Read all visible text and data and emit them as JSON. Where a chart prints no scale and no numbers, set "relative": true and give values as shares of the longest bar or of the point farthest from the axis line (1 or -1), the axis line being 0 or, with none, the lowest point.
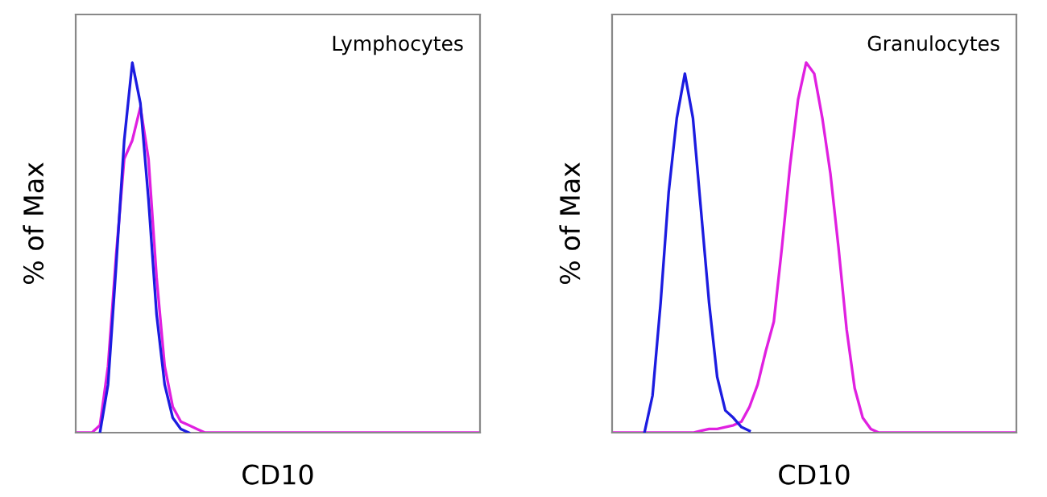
{
  "chart_data": [
    {
      "type": "line",
      "relative": true,
      "ylabel": "% of Max",
      "xlabel": "CD10",
      "annotations": [
        "Lymphocytes"
      ],
      "categories": [
        null,
        null,
        null,
        null,
        null,
        null,
        null,
        null,
        null,
        null,
        null,
        null,
        null,
        null,
        null,
        null,
        null,
        null,
        null,
        null,
        null,
        null,
        null,
        null,
        null,
        null,
        null,
        null,
        null,
        null,
        null,
        null,
        null,
        null,
        null,
        null,
        null,
        null,
        null,
        null,
        null,
        null,
        null,
        null,
        null,
        null,
        null,
        null,
        null,
        null,
        null
      ],
      "series": [
        {
          "color": "#1c1ce0",
          "values": [
            null,
            null,
            null,
            0,
            0.13,
            0.45,
            0.79,
            1,
            0.89,
            0.63,
            0.32,
            0.13,
            0.04,
            0.01,
            0,
            null,
            null,
            null,
            null,
            null,
            null,
            null,
            null,
            null,
            null,
            null,
            null,
            null,
            null,
            null,
            null,
            null,
            null,
            null,
            null,
            null,
            null,
            null,
            null,
            null,
            null,
            null,
            null,
            null,
            null,
            null,
            null,
            null,
            null,
            null,
            null
          ]
        },
        {
          "color": "#e020e0",
          "values": [
            0,
            0,
            0,
            0.02,
            0.18,
            0.48,
            0.74,
            0.79,
            0.88,
            0.74,
            0.42,
            0.18,
            0.07,
            0.03,
            0.02,
            0.01,
            0,
            0,
            0,
            0,
            0,
            0,
            0,
            0,
            0,
            0,
            0,
            0,
            0,
            0,
            0,
            0,
            0,
            0,
            0,
            0,
            0,
            0,
            0,
            0,
            0,
            0,
            0,
            0,
            0,
            0,
            0,
            0,
            0,
            0,
            0
          ]
        }
      ]
    },
    {
      "type": "line",
      "relative": true,
      "ylabel": "% of Max",
      "xlabel": "CD10",
      "annotations": [
        "Granulocytes"
      ],
      "categories": [
        null,
        null,
        null,
        null,
        null,
        null,
        null,
        null,
        null,
        null,
        null,
        null,
        null,
        null,
        null,
        null,
        null,
        null,
        null,
        null,
        null,
        null,
        null,
        null,
        null,
        null,
        null,
        null,
        null,
        null,
        null,
        null,
        null,
        null,
        null,
        null,
        null,
        null,
        null,
        null,
        null,
        null,
        null,
        null,
        null,
        null,
        null,
        null,
        null,
        null,
        null
      ],
      "series": [
        {
          "color": "#1c1ce0",
          "values": [
            null,
            null,
            null,
            null,
            0,
            0.1,
            0.35,
            0.65,
            0.85,
            0.97,
            0.85,
            0.6,
            0.35,
            0.15,
            0.06,
            0.04,
            0.015,
            0.005,
            null,
            null,
            null,
            null,
            null,
            null,
            null,
            null,
            null,
            null,
            null,
            null,
            null,
            null,
            null,
            null,
            null,
            null,
            null,
            null,
            null,
            null,
            null,
            null,
            null,
            null,
            null,
            null,
            null,
            null,
            null,
            null,
            null
          ]
        },
        {
          "color": "#e020e0",
          "values": [
            0,
            0,
            0,
            0,
            0,
            0,
            0,
            0,
            0,
            0,
            0,
            0.005,
            0.01,
            0.01,
            0.015,
            0.02,
            0.03,
            0.07,
            0.13,
            0.22,
            0.3,
            0.5,
            0.72,
            0.9,
            1,
            0.97,
            0.85,
            0.7,
            0.5,
            0.28,
            0.12,
            0.04,
            0.01,
            0,
            0,
            0,
            0,
            0,
            0,
            0,
            0,
            0,
            0,
            0,
            0,
            0,
            0,
            0,
            0,
            0,
            0
          ]
        }
      ]
    }
  ]
}
